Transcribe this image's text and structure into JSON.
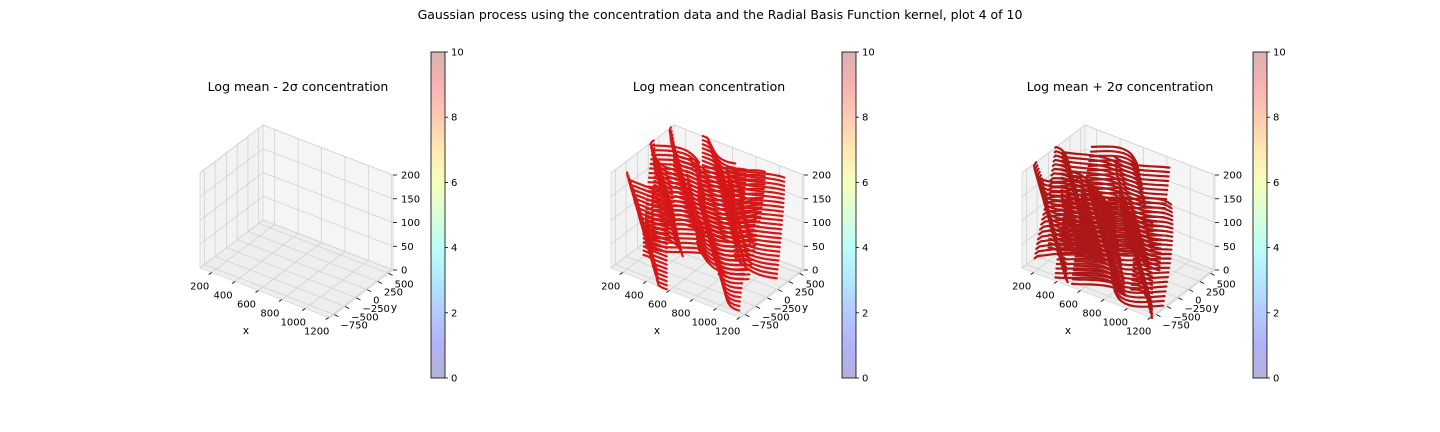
{
  "suptitle": "Gaussian process using the  concentration data and the Radial Basis Function kernel, plot 4 of 10",
  "panels": [
    {
      "title": "Log mean - 2σ concentration",
      "data_color": null,
      "density": 0
    },
    {
      "title": "Log mean concentration",
      "data_color": "#d40000",
      "density": 1
    },
    {
      "title": "Log mean + 2σ concentration",
      "data_color": "#a80000",
      "density": 1
    }
  ],
  "axes": {
    "xlabel": "x",
    "ylabel": "y",
    "xticks": [
      "200",
      "400",
      "600",
      "800",
      "1000",
      "1200"
    ],
    "yticks": [
      "−750",
      "−500",
      "−250",
      "0",
      "250",
      "500"
    ],
    "zticks": [
      "0",
      "50",
      "100",
      "150",
      "200"
    ]
  },
  "colorbar": {
    "ticks": [
      "0",
      "2",
      "4",
      "6",
      "8",
      "10"
    ],
    "range": [
      0,
      10
    ],
    "colormap": "jet",
    "alpha": 0.3
  },
  "chart_data": [
    {
      "type": "scatter3d",
      "title": "Log mean - 2σ concentration",
      "xlabel": "x",
      "ylabel": "y",
      "zlabel": "",
      "xlim": [
        100,
        1250
      ],
      "ylim": [
        -850,
        600
      ],
      "zlim": [
        0,
        200
      ],
      "color_scale": [
        0,
        10
      ],
      "points": "none visible"
    },
    {
      "type": "scatter3d",
      "title": "Log mean concentration",
      "xlabel": "x",
      "ylabel": "y",
      "zlabel": "",
      "xlim": [
        100,
        1250
      ],
      "ylim": [
        -850,
        600
      ],
      "zlim": [
        0,
        200
      ],
      "color_scale": [
        0,
        10
      ],
      "points": "dense stacked traces at z from 0 to 200, color at top of scale (~10)"
    },
    {
      "type": "scatter3d",
      "title": "Log mean + 2σ concentration",
      "xlabel": "x",
      "ylabel": "y",
      "zlabel": "",
      "xlim": [
        100,
        1250
      ],
      "ylim": [
        -850,
        600
      ],
      "zlim": [
        0,
        200
      ],
      "color_scale": [
        0,
        10
      ],
      "points": "dense stacked traces at z from 0 to 200, color at top of scale (~10)"
    }
  ]
}
